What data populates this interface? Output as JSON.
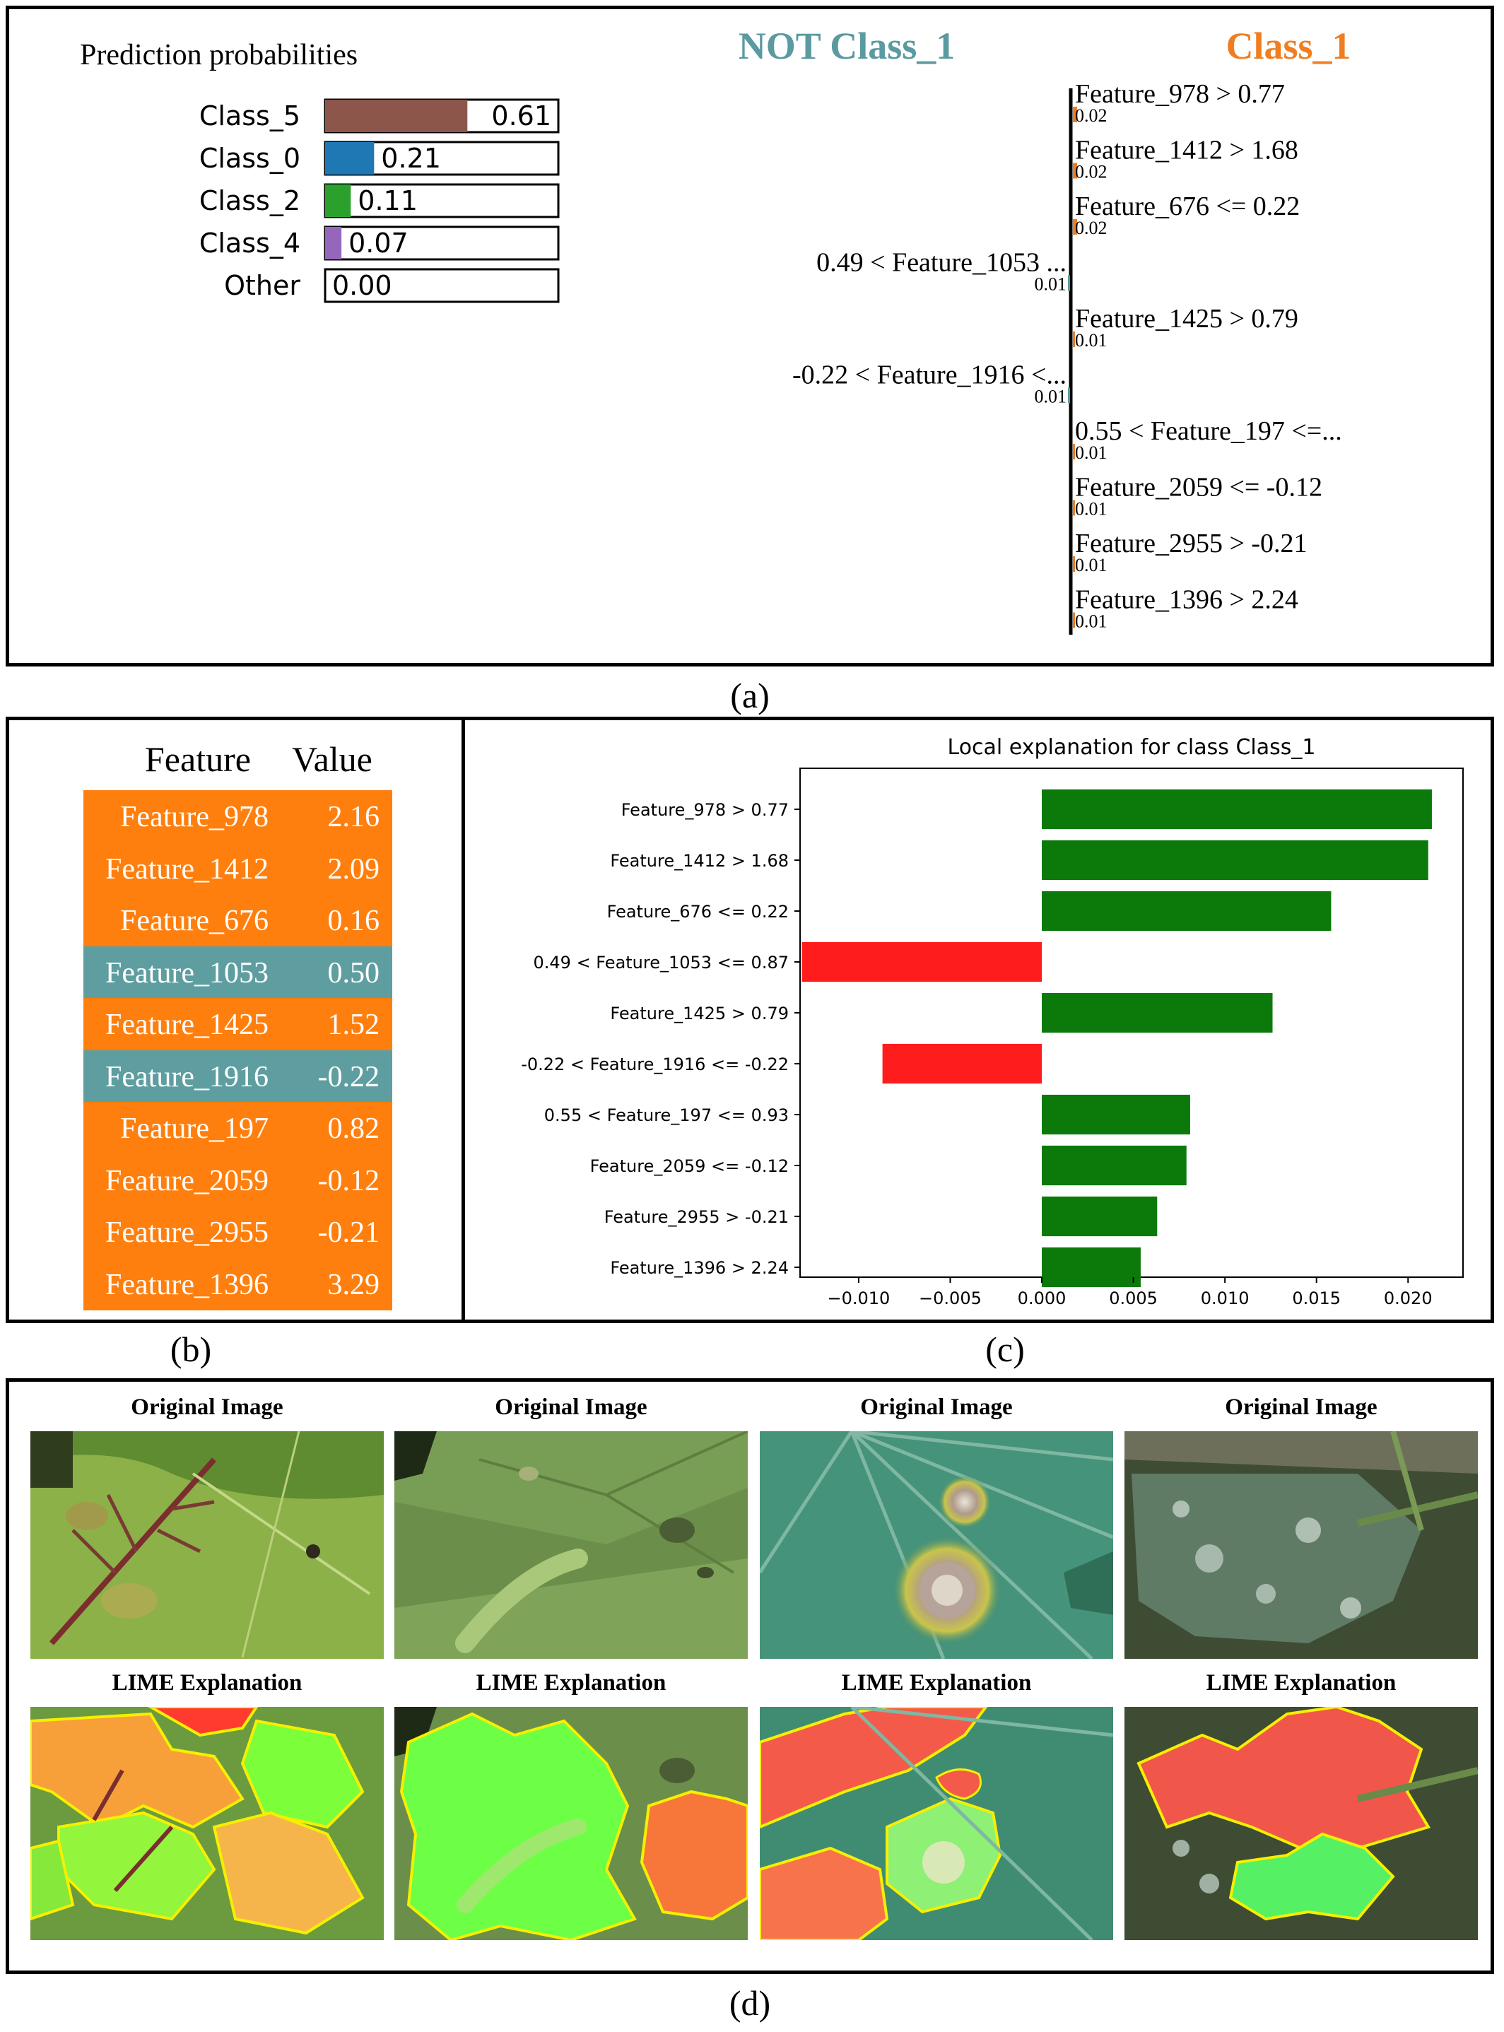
{
  "captions": {
    "a": "(a)",
    "b": "(b)",
    "c": "(c)",
    "d": "(d)"
  },
  "colors": {
    "not_class": "#5a9aa0",
    "class": "#f07e21",
    "positive_bar": "#0b7a0b",
    "negative_bar": "#ff1c1c",
    "table_orange": "#ff7f0e",
    "table_teal": "#5f9ea0"
  },
  "panel_a": {
    "prob_title": "Prediction probabilities",
    "probabilities": [
      {
        "label": "Class_5",
        "value": 0.61,
        "text": "0.61",
        "color": "#8c564b"
      },
      {
        "label": "Class_0",
        "value": 0.21,
        "text": "0.21",
        "color": "#1f77b4"
      },
      {
        "label": "Class_2",
        "value": 0.11,
        "text": "0.11",
        "color": "#2ca02c"
      },
      {
        "label": "Class_4",
        "value": 0.07,
        "text": "0.07",
        "color": "#9467bd"
      },
      {
        "label": "Other",
        "value": 0.0,
        "text": "0.00",
        "color": "#7f7f7f"
      }
    ],
    "not_class_title": "NOT Class_1",
    "class_title": "Class_1",
    "contributions": [
      {
        "label": "Feature_978 > 0.77",
        "weight": 0.02,
        "text": "0.02",
        "side": "class"
      },
      {
        "label": "Feature_1412 > 1.68",
        "weight": 0.02,
        "text": "0.02",
        "side": "class"
      },
      {
        "label": "Feature_676 <= 0.22",
        "weight": 0.02,
        "text": "0.02",
        "side": "class"
      },
      {
        "label": "0.49 < Feature_1053 ...",
        "weight": 0.01,
        "text": "0.01",
        "side": "not"
      },
      {
        "label": "Feature_1425 > 0.79",
        "weight": 0.01,
        "text": "0.01",
        "side": "class"
      },
      {
        "label": "-0.22 < Feature_1916 <...",
        "weight": 0.01,
        "text": "0.01",
        "side": "not"
      },
      {
        "label": "0.55 < Feature_197 <=...",
        "weight": 0.01,
        "text": "0.01",
        "side": "class"
      },
      {
        "label": "Feature_2059 <= -0.12",
        "weight": 0.01,
        "text": "0.01",
        "side": "class"
      },
      {
        "label": "Feature_2955 > -0.21",
        "weight": 0.01,
        "text": "0.01",
        "side": "class"
      },
      {
        "label": "Feature_1396 > 2.24",
        "weight": 0.01,
        "text": "0.01",
        "side": "class"
      }
    ]
  },
  "panel_b": {
    "header_feature": "Feature",
    "header_value": "Value",
    "rows": [
      {
        "feature": "Feature_978",
        "value": "2.16",
        "side": "class"
      },
      {
        "feature": "Feature_1412",
        "value": "2.09",
        "side": "class"
      },
      {
        "feature": "Feature_676",
        "value": "0.16",
        "side": "class"
      },
      {
        "feature": "Feature_1053",
        "value": "0.50",
        "side": "not"
      },
      {
        "feature": "Feature_1425",
        "value": "1.52",
        "side": "class"
      },
      {
        "feature": "Feature_1916",
        "value": "-0.22",
        "side": "not"
      },
      {
        "feature": "Feature_197",
        "value": "0.82",
        "side": "class"
      },
      {
        "feature": "Feature_2059",
        "value": "-0.12",
        "side": "class"
      },
      {
        "feature": "Feature_2955",
        "value": "-0.21",
        "side": "class"
      },
      {
        "feature": "Feature_1396",
        "value": "3.29",
        "side": "class"
      }
    ]
  },
  "chart_data": {
    "type": "bar",
    "orientation": "horizontal",
    "title": "Local explanation for class Class_1",
    "categories": [
      "Feature_978 > 0.77",
      "Feature_1412 > 1.68",
      "Feature_676 <= 0.22",
      "0.49 < Feature_1053 <= 0.87",
      "Feature_1425 > 0.79",
      "-0.22 < Feature_1916 <= -0.22",
      "0.55 < Feature_197 <= 0.93",
      "Feature_2059 <= -0.12",
      "Feature_2955 > -0.21",
      "Feature_1396 > 2.24"
    ],
    "values": [
      0.0213,
      0.0211,
      0.0158,
      -0.0131,
      0.0126,
      -0.0087,
      0.0081,
      0.0079,
      0.0063,
      0.0054
    ],
    "xlim": [
      -0.0132,
      0.023
    ],
    "xticks": [
      -0.01,
      -0.005,
      0.0,
      0.005,
      0.01,
      0.015,
      0.02
    ],
    "xtick_labels": [
      "−0.010",
      "−0.005",
      "0.000",
      "0.005",
      "0.010",
      "0.015",
      "0.020"
    ],
    "grid": false
  },
  "panel_d": {
    "original_title": "Original Image",
    "lime_title": "LIME Explanation",
    "columns": 4
  }
}
